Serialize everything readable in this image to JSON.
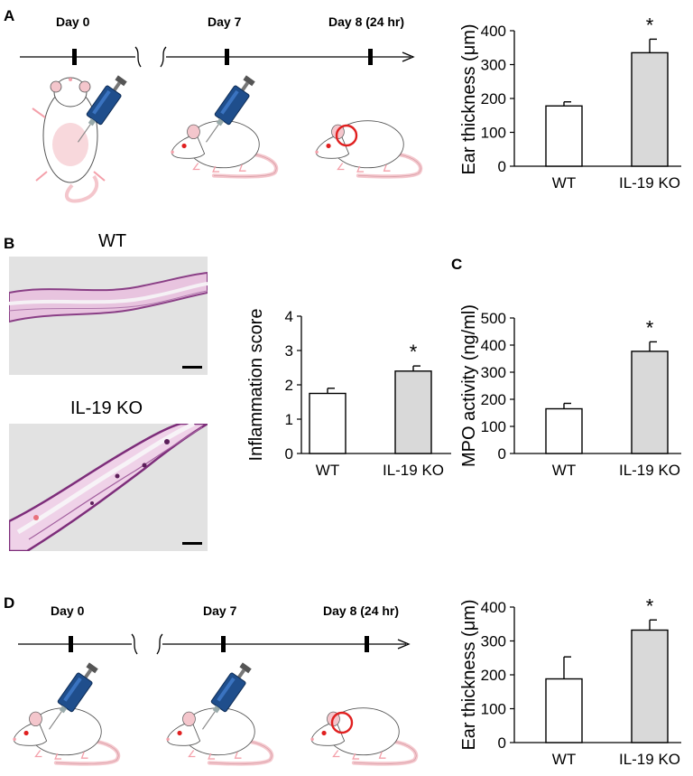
{
  "panels": {
    "A": {
      "label": "A",
      "timeline": {
        "day0": "Day 0",
        "day7": "Day 7",
        "day8": "Day 8 (24 hr)"
      }
    },
    "B": {
      "label": "B",
      "image_top_title": "WT",
      "image_bottom_title": "IL-19 KO"
    },
    "C": {
      "label": "C"
    },
    "D": {
      "label": "D",
      "timeline": {
        "day0": "Day 0",
        "day7": "Day 7",
        "day8": "Day 8 (24 hr)"
      }
    }
  },
  "colors": {
    "ko_bar": "#d9d9d9",
    "wt_bar": "#ffffff",
    "syringe": "#1f4e8c",
    "mouse_pink": "#f4c6cc",
    "mark_red": "#e02020"
  },
  "chart_data": [
    {
      "id": "A",
      "type": "bar",
      "categories": [
        "WT",
        "IL-19 KO"
      ],
      "values": [
        178,
        335
      ],
      "errors": [
        12,
        40
      ],
      "ylabel": "Ear thickness (μm)",
      "ylim": [
        0,
        400
      ],
      "yticks": [
        0,
        100,
        200,
        300,
        400
      ],
      "significance": [
        "",
        "*"
      ]
    },
    {
      "id": "B",
      "type": "bar",
      "categories": [
        "WT",
        "IL-19 KO"
      ],
      "values": [
        1.75,
        2.4
      ],
      "errors": [
        0.15,
        0.15
      ],
      "ylabel": "Inflammation score",
      "ylim": [
        0,
        4
      ],
      "yticks": [
        0,
        1,
        2,
        3,
        4
      ],
      "significance": [
        "",
        "*"
      ]
    },
    {
      "id": "C",
      "type": "bar",
      "categories": [
        "WT",
        "IL-19 KO"
      ],
      "values": [
        165,
        377
      ],
      "errors": [
        20,
        35
      ],
      "ylabel": "MPO activity (ng/ml)",
      "ylim": [
        0,
        500
      ],
      "yticks": [
        0,
        100,
        200,
        300,
        400,
        500
      ],
      "significance": [
        "",
        "*"
      ]
    },
    {
      "id": "D",
      "type": "bar",
      "categories": [
        "WT",
        "IL-19 KO"
      ],
      "values": [
        188,
        332
      ],
      "errors": [
        65,
        30
      ],
      "ylabel": "Ear thickness (μm)",
      "ylim": [
        0,
        400
      ],
      "yticks": [
        0,
        100,
        200,
        300,
        400
      ],
      "significance": [
        "",
        "*"
      ]
    }
  ]
}
